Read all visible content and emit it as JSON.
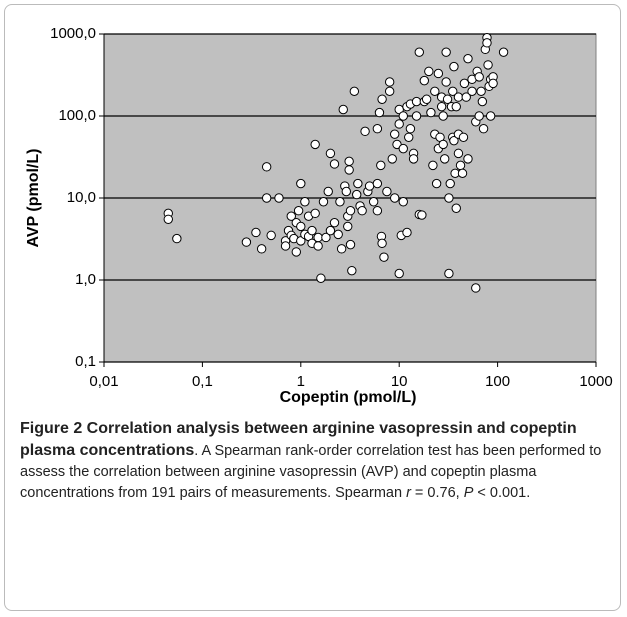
{
  "chart_data": {
    "type": "scatter",
    "xlabel": "Copeptin (pmol/L)",
    "ylabel": "AVP (pmol/L)",
    "xscale": "log",
    "yscale": "log",
    "grid": true,
    "color": "#ffffff",
    "edgecolor": "#000000",
    "background": "#c0c0c0",
    "xlim": [
      0.01,
      1000
    ],
    "ylim": [
      0.1,
      1000
    ],
    "xticks": [
      {
        "value": 0.01,
        "label": "0,01"
      },
      {
        "value": 0.1,
        "label": "0,1"
      },
      1,
      10,
      100,
      1000
    ],
    "yticks": [
      {
        "value": 0.1,
        "label": "0,1"
      },
      {
        "value": 1,
        "label": "1,0"
      },
      {
        "value": 10,
        "label": "10,0"
      },
      {
        "value": 100,
        "label": "100,0"
      },
      {
        "value": 1000,
        "label": "1000,0"
      }
    ],
    "x": [
      0.045,
      0.045,
      0.055,
      0.28,
      0.35,
      0.4,
      0.45,
      0.45,
      0.5,
      0.6,
      0.7,
      0.7,
      0.75,
      0.8,
      0.8,
      0.85,
      0.9,
      0.9,
      0.95,
      1.0,
      1.0,
      1.0,
      1.1,
      1.1,
      1.2,
      1.2,
      1.3,
      1.3,
      1.4,
      1.4,
      1.5,
      1.5,
      1.6,
      1.7,
      1.8,
      1.9,
      2.0,
      2.0,
      2.2,
      2.2,
      2.4,
      2.5,
      2.6,
      2.7,
      2.8,
      2.9,
      3.0,
      3.0,
      3.1,
      3.1,
      3.2,
      3.2,
      3.3,
      3.5,
      3.7,
      3.8,
      4.0,
      4.2,
      4.5,
      4.8,
      5,
      5.5,
      6,
      6,
      6,
      6.3,
      6.5,
      6.6,
      6.7,
      6.7,
      7,
      7.5,
      8,
      8,
      8.5,
      9,
      9,
      9.5,
      10,
      10,
      10,
      10.5,
      11,
      11,
      11,
      12,
      12,
      12.5,
      13,
      13,
      14,
      14,
      15,
      15,
      16,
      16,
      17,
      18,
      18,
      19,
      20,
      21,
      22,
      23,
      23,
      24,
      25,
      25,
      26,
      27,
      27,
      28,
      29,
      30,
      30,
      31,
      32,
      32,
      33,
      34,
      35,
      35,
      36,
      36,
      37,
      38,
      38,
      40,
      40,
      42,
      44,
      46,
      48,
      50,
      50,
      55,
      55,
      60,
      60,
      62,
      65,
      65,
      68,
      70,
      72,
      75,
      78,
      78,
      80,
      82,
      85,
      85,
      90,
      90,
      115,
      40,
      45,
      28
    ],
    "values": [
      6.5,
      5.5,
      3.2,
      2.9,
      3.8,
      2.4,
      10,
      24,
      3.5,
      10,
      3.0,
      2.6,
      4,
      3.5,
      6,
      3.2,
      2.2,
      5,
      7,
      15,
      3,
      4.5,
      3.6,
      9,
      6,
      3.4,
      4,
      2.8,
      45,
      6.5,
      2.6,
      3.3,
      1.05,
      9,
      3.3,
      12,
      35,
      4,
      5,
      26,
      3.6,
      9,
      2.4,
      120,
      14,
      12,
      6,
      4.5,
      22,
      28,
      2.7,
      7,
      1.3,
      200,
      11,
      15,
      8,
      7,
      65,
      12,
      14,
      9,
      70,
      7,
      15,
      110,
      25,
      3.4,
      2.8,
      160,
      1.9,
      12,
      260,
      200,
      30,
      60,
      10,
      45,
      120,
      80,
      1.2,
      3.5,
      100,
      40,
      9,
      130,
      3.8,
      55,
      140,
      70,
      35,
      30,
      100,
      150,
      600,
      6.3,
      6.2,
      150,
      270,
      160,
      350,
      110,
      25,
      60,
      200,
      15,
      330,
      40,
      55,
      170,
      130,
      100,
      30,
      600,
      260,
      160,
      10,
      1.2,
      15,
      130,
      55,
      200,
      50,
      400,
      20,
      7.5,
      130,
      170,
      60,
      25,
      20,
      250,
      170,
      500,
      30,
      280,
      200,
      0.8,
      85,
      350,
      100,
      300,
      200,
      150,
      70,
      650,
      900,
      780,
      420,
      230,
      100,
      280,
      300,
      250,
      600,
      35,
      55,
      45
    ]
  },
  "caption": {
    "title": "Figure 2 Correlation analysis between arginine vasopressin and copeptin plasma concentrations",
    "text": ". A Spearman rank-order correlation test has been performed to assess the correlation between arginine vasopressin (AVP) and copeptin plasma concentrations from 191 pairs of measurements. Spearman ",
    "r": "r",
    "r_text": " = 0.76, ",
    "p": "P",
    "p_text": " < 0.001."
  }
}
